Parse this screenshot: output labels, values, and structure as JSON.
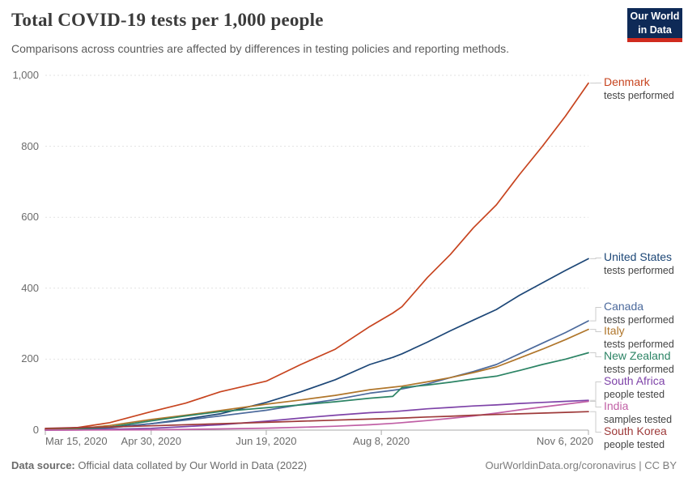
{
  "header": {
    "title": "Total COVID-19 tests per 1,000 people",
    "subtitle": "Comparisons across countries are affected by differences in testing policies and reporting methods.",
    "logo": {
      "line1": "Our World",
      "line2": "in Data",
      "bg_color": "#0e2a57",
      "stripe_color": "#d02b1e"
    }
  },
  "chart_data": {
    "type": "line",
    "title": "Total COVID-19 tests per 1,000 people",
    "xlabel": "",
    "ylabel": "",
    "ylim": [
      0,
      1000
    ],
    "xlim": [
      "2020-03-15",
      "2020-11-06"
    ],
    "grid": "horizontal-dashed",
    "legend_position": "right-edge-labels",
    "yticks": [
      0,
      200,
      400,
      600,
      800,
      1000
    ],
    "ytick_labels": [
      "0",
      "200",
      "400",
      "600",
      "800",
      "1,000"
    ],
    "xticks": [
      {
        "date": "2020-03-15",
        "label": "Mar 15, 2020"
      },
      {
        "date": "2020-04-30",
        "label": "Apr 30, 2020"
      },
      {
        "date": "2020-06-19",
        "label": "Jun 19, 2020"
      },
      {
        "date": "2020-08-08",
        "label": "Aug 8, 2020"
      },
      {
        "date": "2020-11-06",
        "label": "Nov 6, 2020"
      }
    ],
    "x": [
      "2020-03-15",
      "2020-03-29",
      "2020-04-12",
      "2020-04-30",
      "2020-05-15",
      "2020-05-30",
      "2020-06-19",
      "2020-07-04",
      "2020-07-19",
      "2020-08-03",
      "2020-08-13",
      "2020-08-17",
      "2020-08-28",
      "2020-09-07",
      "2020-09-17",
      "2020-09-27",
      "2020-10-07",
      "2020-10-17",
      "2020-10-27",
      "2020-11-06"
    ],
    "series": [
      {
        "name": "Denmark",
        "sublabel": "tests performed",
        "color": "#c7441f",
        "values": [
          2,
          7,
          21,
          52,
          76,
          108,
          138,
          185,
          228,
          292,
          330,
          348,
          430,
          495,
          570,
          635,
          720,
          800,
          885,
          978
        ]
      },
      {
        "name": "United States",
        "sublabel": "tests performed",
        "color": "#1d4777",
        "values": [
          0.5,
          2,
          8,
          18,
          31,
          46,
          78,
          108,
          142,
          185,
          205,
          215,
          248,
          280,
          310,
          340,
          380,
          415,
          450,
          483
        ]
      },
      {
        "name": "Canada",
        "sublabel": "tests performed",
        "color": "#4c6a9c",
        "values": [
          0.5,
          2,
          6,
          18,
          28,
          40,
          56,
          72,
          86,
          104,
          112,
          116,
          130,
          148,
          165,
          185,
          215,
          245,
          275,
          308
        ]
      },
      {
        "name": "Italy",
        "sublabel": "tests performed",
        "color": "#b0762b",
        "values": [
          1,
          4,
          13,
          30,
          42,
          55,
          73,
          85,
          98,
          114,
          121,
          124,
          136,
          148,
          162,
          178,
          203,
          228,
          255,
          284
        ]
      },
      {
        "name": "New Zealand",
        "sublabel": "tests performed",
        "color": "#2c8465",
        "values": [
          0.3,
          2,
          9,
          26,
          40,
          52,
          63,
          71,
          80,
          90,
          95,
          120,
          127,
          135,
          144,
          152,
          168,
          185,
          200,
          218
        ]
      },
      {
        "name": "South Africa",
        "sublabel": "people tested",
        "color": "#7e43a8",
        "values": [
          0.1,
          0.5,
          2,
          5,
          10,
          15,
          25,
          34,
          42,
          49,
          52,
          54,
          60,
          64,
          68,
          71,
          75,
          78,
          81,
          84
        ]
      },
      {
        "name": "India",
        "sublabel": "samples tested",
        "color": "#c05fa5",
        "values": [
          0.05,
          0.2,
          0.5,
          1,
          2,
          3.5,
          5.5,
          8,
          11,
          15,
          19,
          21,
          27,
          33,
          40,
          48,
          57,
          65,
          73,
          81
        ]
      },
      {
        "name": "South Korea",
        "sublabel": "people tested",
        "color": "#9e3a3a",
        "values": [
          5,
          7,
          9,
          12,
          15,
          18,
          22,
          25,
          28,
          31,
          33,
          34,
          37,
          39,
          42,
          44,
          46,
          48,
          50,
          52
        ]
      }
    ]
  },
  "footer": {
    "source_label": "Data source:",
    "source_text": " Official data collated by Our World in Data (2022)",
    "credit": "OurWorldinData.org/coronavirus | CC BY"
  }
}
